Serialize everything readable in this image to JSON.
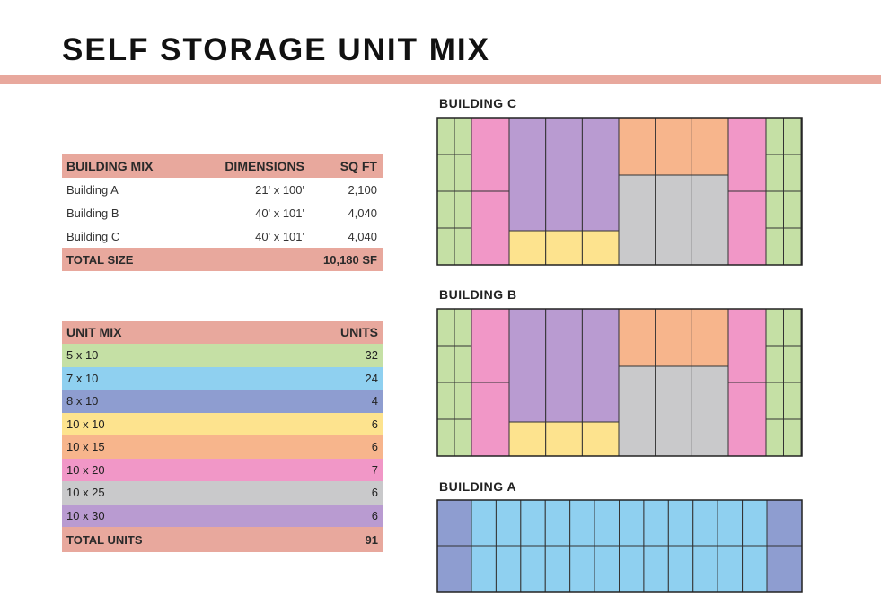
{
  "title": "SELF STORAGE UNIT MIX",
  "building_mix": {
    "headers": [
      "BUILDING MIX",
      "DIMENSIONS",
      "SQ FT"
    ],
    "rows": [
      {
        "name": "Building A",
        "dimensions": "21' x 100'",
        "sqft": "2,100"
      },
      {
        "name": "Building B",
        "dimensions": "40' x 101'",
        "sqft": "4,040"
      },
      {
        "name": "Building C",
        "dimensions": "40' x 101'",
        "sqft": "4,040"
      }
    ],
    "total_label": "TOTAL SIZE",
    "total_value": "10,180 SF"
  },
  "unit_mix": {
    "headers": [
      "UNIT MIX",
      "UNITS"
    ],
    "rows": [
      {
        "size": "5 x 10",
        "units": "32",
        "color": "#c5e0a5"
      },
      {
        "size": "7 x 10",
        "units": "24",
        "color": "#8fd0f0"
      },
      {
        "size": "8 x 10",
        "units": "4",
        "color": "#8e9dd0"
      },
      {
        "size": "10 x 10",
        "units": "6",
        "color": "#fde38e"
      },
      {
        "size": "10 x 15",
        "units": "6",
        "color": "#f7b58c"
      },
      {
        "size": "10 x 20",
        "units": "7",
        "color": "#f197c7"
      },
      {
        "size": "10 x 25",
        "units": "6",
        "color": "#c9c9cb"
      },
      {
        "size": "10 x 30",
        "units": "6",
        "color": "#b99bd1"
      }
    ],
    "total_label": "TOTAL UNITS",
    "total_value": "91"
  },
  "buildings": {
    "c_label": "BUILDING C",
    "b_label": "BUILDING B",
    "a_label": "BUILDING A"
  },
  "colors": {
    "accent": "#e8a89d",
    "green": "#c5e0a5",
    "blue": "#8fd0f0",
    "navy": "#8e9dd0",
    "yellow": "#fde38e",
    "orange": "#f7b58c",
    "pink": "#f197c7",
    "gray": "#c9c9cb",
    "purple": "#b99bd1"
  }
}
